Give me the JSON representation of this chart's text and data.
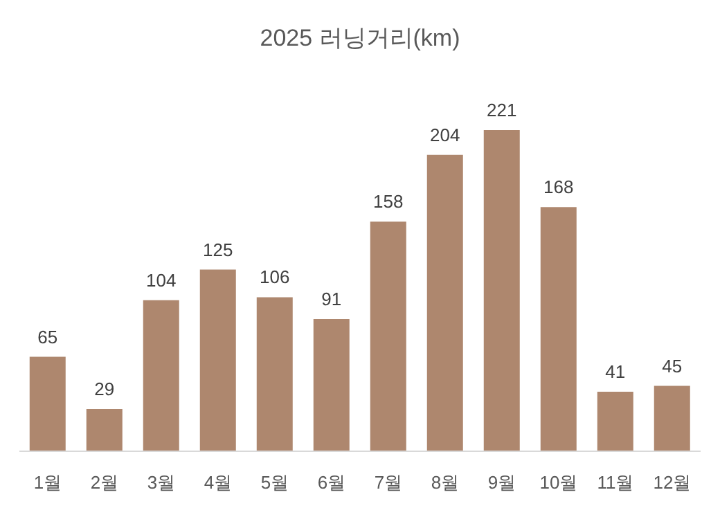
{
  "chart_data": {
    "type": "bar",
    "title": "2025 러닝거리(km)",
    "categories": [
      "1월",
      "2월",
      "3월",
      "4월",
      "5월",
      "6월",
      "7월",
      "8월",
      "9월",
      "10월",
      "11월",
      "12월"
    ],
    "values": [
      65,
      29,
      104,
      125,
      106,
      91,
      158,
      204,
      221,
      168,
      41,
      45
    ],
    "color": "#ae876e",
    "data_labels": true
  }
}
